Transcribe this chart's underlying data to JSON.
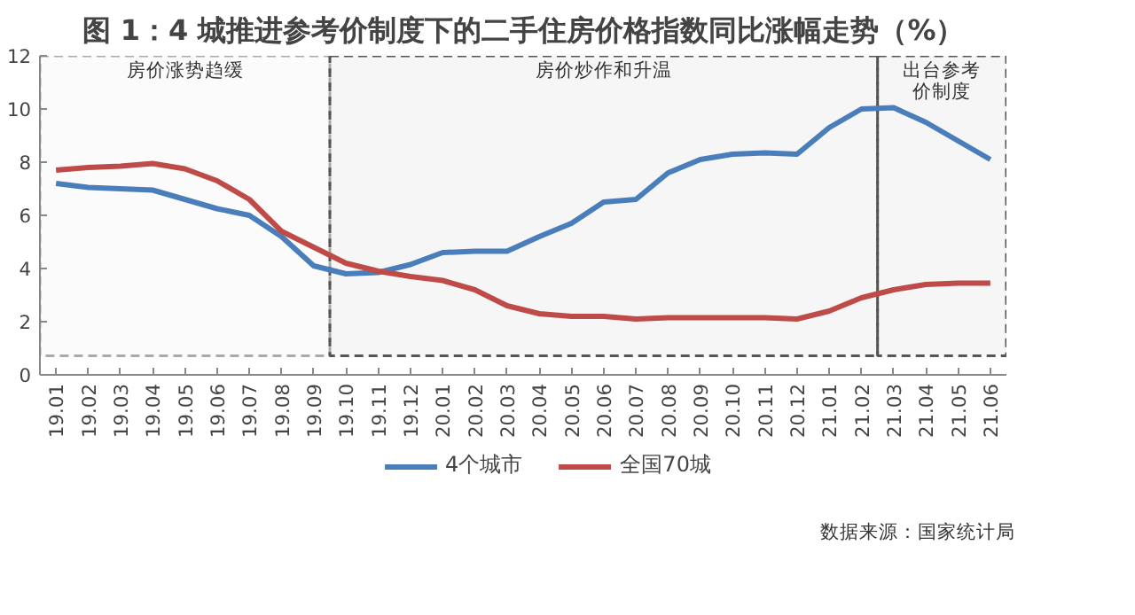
{
  "chart_data": {
    "type": "line",
    "title": "图 1：4 城推进参考价制度下的二手住房价格指数同比涨幅走势（%）",
    "categories": [
      "19.01",
      "19.02",
      "19.03",
      "19.04",
      "19.05",
      "19.06",
      "19.07",
      "19.08",
      "19.09",
      "19.10",
      "19.11",
      "19.12",
      "20.01",
      "20.02",
      "20.03",
      "20.04",
      "20.05",
      "20.06",
      "20.07",
      "20.08",
      "20.09",
      "20.10",
      "20.11",
      "20.12",
      "21.01",
      "21.02",
      "21.03",
      "21.04",
      "21.05",
      "21.06"
    ],
    "series": [
      {
        "name": "4个城市",
        "color": "#4a7ebb",
        "values": [
          7.2,
          7.05,
          7.0,
          6.95,
          6.6,
          6.25,
          6.0,
          5.2,
          4.1,
          3.8,
          3.85,
          4.15,
          4.6,
          4.65,
          4.65,
          5.2,
          5.7,
          6.5,
          6.6,
          7.6,
          8.1,
          8.3,
          8.35,
          8.3,
          9.3,
          10.0,
          10.05,
          9.5,
          8.8,
          8.1
        ]
      },
      {
        "name": "全国70城",
        "color": "#be4b48",
        "values": [
          7.7,
          7.8,
          7.85,
          7.95,
          7.75,
          7.3,
          6.6,
          5.4,
          4.8,
          4.2,
          3.9,
          3.7,
          3.55,
          3.2,
          2.6,
          2.3,
          2.2,
          2.2,
          2.1,
          2.15,
          2.15,
          2.15,
          2.15,
          2.1,
          2.4,
          2.9,
          3.2,
          3.4,
          3.45,
          3.45
        ]
      }
    ],
    "ylim": [
      0,
      12
    ],
    "yticks": [
      0,
      2,
      4,
      6,
      8,
      10,
      12
    ],
    "bands": [
      {
        "axis": "x",
        "from": "19.01",
        "to": "19.09",
        "label": "房价涨势趋缓",
        "color": "#aaaaaa"
      },
      {
        "axis": "x",
        "from": "19.10",
        "to": "21.02",
        "label": "房价炒作和升温",
        "color": "#555555"
      },
      {
        "axis": "x",
        "from": "21.03",
        "to": "21.06",
        "label": "出台参考价制度",
        "color": "#555555"
      }
    ],
    "legend": "bottom",
    "grid": false,
    "line_style": "solid",
    "marker": "none",
    "annotations": [
      "数据来源：国家统计局"
    ]
  }
}
